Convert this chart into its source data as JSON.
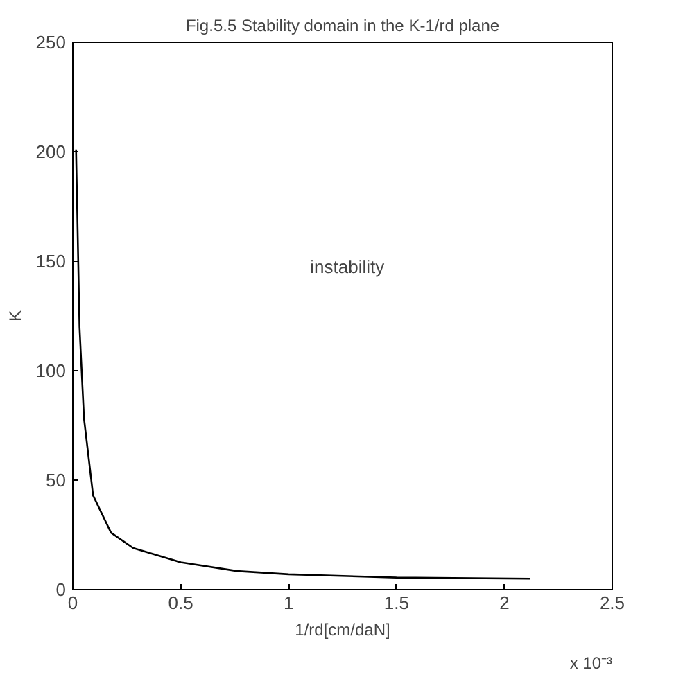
{
  "chart_data": {
    "type": "line",
    "title": "Fig.5.5 Stability domain in the K-1/rd plane",
    "xlabel": "1/rd[cm/daN]",
    "ylabel": "K",
    "x": [
      0.015,
      0.031,
      0.052,
      0.094,
      0.177,
      0.28,
      0.5,
      0.76,
      1.0,
      1.5,
      2.12
    ],
    "series": [
      {
        "color": "#000000",
        "values": [
          201,
          120,
          78,
          43,
          26,
          19,
          12.5,
          8.5,
          7,
          5.5,
          5
        ]
      }
    ],
    "xlim": [
      0,
      2.5
    ],
    "xticks": [
      0,
      0.5,
      1,
      1.5,
      2,
      2.5
    ],
    "ylim": [
      0,
      250
    ],
    "yticks": [
      0,
      50,
      100,
      150,
      200,
      250
    ],
    "annotations": [
      "instability",
      "x 10⁻³"
    ],
    "grid": false,
    "marker": "none",
    "line_style": "solid"
  }
}
